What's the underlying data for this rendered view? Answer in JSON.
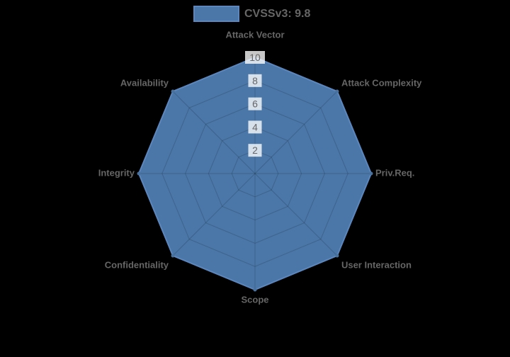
{
  "background": "#000000",
  "legend": {
    "position": "top",
    "items": [
      {
        "label": "CVSSv3: 9.8",
        "swatch_fill": "#4a77a7",
        "swatch_border": "#5b87be"
      }
    ]
  },
  "chart_data": {
    "type": "radar",
    "categories": [
      "Attack Vector",
      "Attack Complexity",
      "Priv.Req.",
      "User Interaction",
      "Scope",
      "Confidentiality",
      "Integrity",
      "Availability"
    ],
    "series": [
      {
        "name": "CVSSv3: 9.8",
        "values": [
          10,
          10,
          10,
          10,
          10,
          10,
          10,
          10
        ]
      }
    ],
    "score": "9.8",
    "rlim": [
      0,
      10
    ],
    "ticks": [
      "2",
      "4",
      "6",
      "8",
      "10"
    ],
    "grid": true,
    "legend_position": "top",
    "colors": {
      "fill": "#4a77a7",
      "border": "#5b87be",
      "point": "#49719d",
      "grid_line": "rgba(0,0,0,0.16)",
      "tick_backdrop": "rgba(255,255,255,0.78)",
      "label_text": "#666666"
    }
  }
}
